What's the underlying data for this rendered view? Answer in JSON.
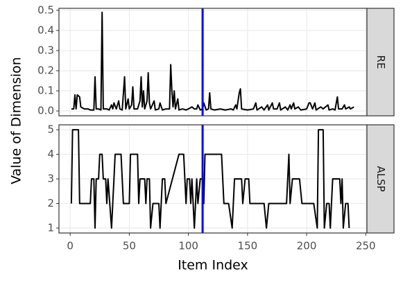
{
  "chart_data": {
    "type": "line",
    "xlabel": "Item Index",
    "ylabel": "Value of Dimension",
    "xlim": [
      -9.5,
      251
    ],
    "xticks": [
      0,
      50,
      100,
      150,
      200,
      250
    ],
    "grid": true,
    "color": "#000000",
    "vline": {
      "value": 112,
      "color": "#0000ff"
    },
    "panels": [
      {
        "strip": "RE",
        "ylim": [
          -0.024,
          0.51
        ],
        "yticks": [
          {
            "value": 0,
            "label": "0.0"
          },
          0.1,
          0.2,
          0.3,
          0.4,
          0.5
        ],
        "x": [
          1,
          3,
          4,
          5,
          6,
          8,
          9,
          12,
          15,
          17,
          20,
          21,
          22,
          24,
          26,
          27,
          28,
          31,
          33,
          35,
          36,
          37,
          39,
          41,
          42,
          44,
          46,
          47,
          49,
          50,
          52,
          53,
          54,
          57,
          59,
          60,
          61,
          62,
          63,
          65,
          66,
          67,
          68,
          71,
          72,
          75,
          76,
          78,
          81,
          84,
          85,
          86,
          87,
          88,
          89,
          91,
          92,
          95,
          98,
          100,
          103,
          105,
          107,
          108,
          110,
          112,
          113,
          115,
          117,
          118,
          119,
          122,
          127,
          131,
          136,
          138,
          140,
          141,
          143,
          144,
          145,
          150,
          155,
          157,
          158,
          162,
          164,
          167,
          168,
          171,
          172,
          175,
          177,
          178,
          182,
          184,
          186,
          187,
          189,
          190,
          193,
          195,
          200,
          202,
          203,
          205,
          207,
          208,
          212,
          214,
          218,
          219,
          222,
          224,
          226,
          227,
          230,
          232,
          233,
          236,
          237,
          240
        ],
        "values": [
          0.01,
          0.01,
          0.08,
          0.01,
          0.08,
          0.07,
          0.02,
          0.01,
          0.01,
          0.005,
          0.005,
          0.17,
          0.01,
          0.01,
          0.005,
          0.49,
          0.01,
          0.01,
          0.005,
          0.03,
          0.01,
          0.04,
          0.01,
          0.05,
          0.01,
          0.005,
          0.17,
          0.01,
          0.06,
          0.01,
          0.03,
          0.12,
          0.01,
          0.01,
          0.05,
          0.17,
          0.02,
          0.1,
          0.01,
          0.05,
          0.19,
          0.04,
          0.01,
          0.05,
          0.005,
          0.01,
          0.04,
          0.005,
          0.01,
          0.01,
          0.23,
          0.1,
          0.02,
          0.1,
          0.01,
          0.06,
          0.005,
          0.01,
          0.005,
          0.01,
          0.02,
          0.01,
          0.01,
          0.03,
          0.005,
          0.01,
          0.04,
          0.005,
          0.01,
          0.09,
          0.01,
          0.005,
          0.01,
          0.005,
          0.01,
          0.005,
          0.03,
          0.01,
          0.09,
          0.11,
          0.01,
          0.005,
          0.01,
          0.04,
          0.005,
          0.02,
          0.005,
          0.03,
          0.005,
          0.04,
          0.01,
          0.01,
          0.04,
          0.005,
          0.02,
          0.005,
          0.03,
          0.01,
          0.04,
          0.01,
          0.02,
          0.005,
          0.01,
          0.04,
          0.04,
          0.01,
          0.04,
          0.005,
          0.02,
          0.01,
          0.03,
          0.005,
          0.01,
          0.005,
          0.07,
          0.01,
          0.01,
          0.03,
          0.01,
          0.02,
          0.01,
          0.02
        ]
      },
      {
        "strip": "ALSP",
        "ylim": [
          0.8,
          5.2
        ],
        "yticks": [
          1,
          2,
          3,
          4,
          5
        ],
        "x": [
          1,
          2,
          7,
          8,
          17,
          18,
          20,
          21,
          22,
          24,
          25,
          27,
          28,
          30,
          31,
          32,
          35,
          37,
          38,
          43,
          44,
          45,
          50,
          51,
          57,
          58,
          59,
          63,
          64,
          65,
          67,
          68,
          70,
          75,
          76,
          78,
          80,
          81,
          92,
          96,
          97,
          98,
          99,
          101,
          102,
          103,
          105,
          107,
          108,
          110,
          112,
          113,
          114,
          128,
          130,
          134,
          137,
          138,
          139,
          145,
          146,
          148,
          151,
          152,
          164,
          166,
          168,
          183,
          185,
          186,
          188,
          194,
          196,
          206,
          209,
          210,
          214,
          215,
          217,
          219,
          220,
          222,
          228,
          229,
          230,
          231,
          233,
          235,
          236
        ],
        "values": [
          2,
          5,
          5,
          2,
          2,
          3,
          3,
          1,
          3,
          3,
          4,
          4,
          3,
          3,
          2,
          3,
          1,
          3,
          4,
          4,
          3,
          2,
          2,
          4,
          4,
          2,
          3,
          3,
          2,
          3,
          3,
          1,
          2,
          2,
          1,
          3,
          3,
          2,
          4,
          4,
          3,
          2,
          3,
          3,
          2,
          3,
          1,
          3,
          2,
          3,
          3,
          2,
          4,
          4,
          2,
          2,
          1,
          2,
          3,
          3,
          2,
          3,
          3,
          2,
          2,
          1,
          2,
          2,
          4,
          2,
          3,
          3,
          2,
          2,
          1,
          5,
          5,
          1,
          2,
          2,
          1,
          3,
          3,
          2,
          3,
          1,
          2,
          2,
          1
        ]
      }
    ]
  }
}
